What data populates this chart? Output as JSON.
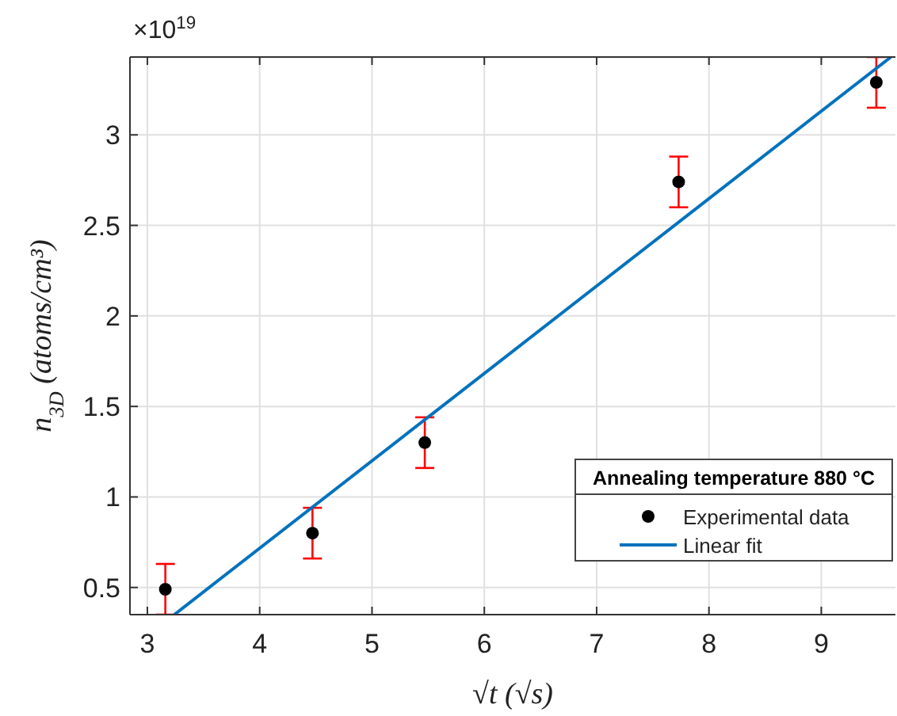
{
  "chart_data": {
    "type": "scatter",
    "xlabel": "√t  (√s)",
    "ylabel": "n$_{3D}$  (atoms/cm³)",
    "legend_title": "Annealing temperature 880 °C",
    "annotations": [
      "×10$^{19}$"
    ],
    "xlim": [
      2.845,
      9.66
    ],
    "xticks": [
      3,
      4,
      5,
      6,
      7,
      8,
      9
    ],
    "ylim": [
      0.35,
      3.43
    ],
    "yticks": [
      0.5,
      1,
      1.5,
      2,
      2.5,
      3
    ],
    "grid": true,
    "legend": "bottom right",
    "series": [
      {
        "name": "Experimental data",
        "marker": "circle",
        "color": "#000000",
        "x": [
          3.16,
          4.47,
          5.47,
          7.73,
          9.49
        ],
        "values": [
          0.49,
          0.8,
          1.3,
          2.74,
          3.29
        ],
        "errors": [
          0.14,
          0.14,
          0.14,
          0.14,
          0.14
        ]
      },
      {
        "name": "Linear fit",
        "type": "line",
        "color": "#0072bd",
        "x": [
          3.24,
          9.62
        ],
        "values": [
          0.35,
          3.43
        ]
      }
    ]
  }
}
